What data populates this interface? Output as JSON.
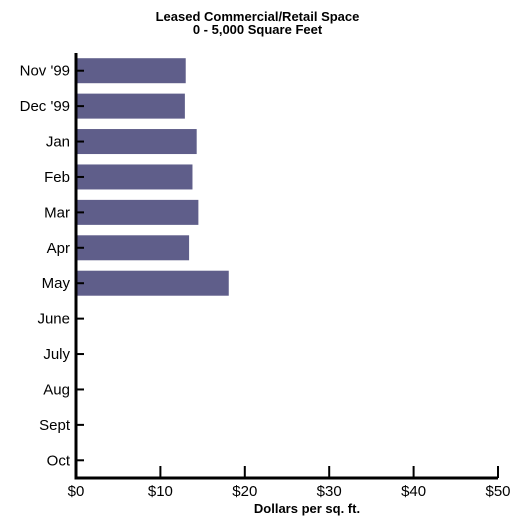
{
  "chart_data": {
    "type": "bar",
    "orientation": "horizontal",
    "title": "Leased Commercial/Retail Space",
    "subtitle": "0 - 5,000 Square Feet",
    "xlabel": "Dollars per sq. ft.",
    "ylabel": "",
    "categories": [
      "Nov '99",
      "Dec '99",
      "Jan",
      "Feb",
      "Mar",
      "Apr",
      "May",
      "June",
      "July",
      "Aug",
      "Sept",
      "Oct"
    ],
    "values": [
      13.0,
      12.9,
      14.3,
      13.8,
      14.5,
      13.4,
      18.1,
      null,
      null,
      null,
      null,
      null
    ],
    "xlim": [
      0,
      50
    ],
    "xticks": [
      0,
      10,
      20,
      30,
      40,
      50
    ],
    "xtick_labels": [
      "$0",
      "$10",
      "$20",
      "$30",
      "$40",
      "$50"
    ],
    "grid": false,
    "bar_color": "#5f5e8a"
  }
}
